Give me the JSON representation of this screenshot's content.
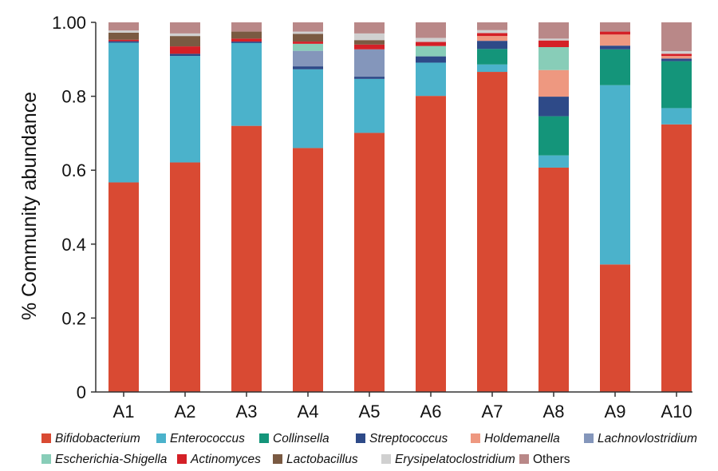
{
  "chart_data": {
    "type": "bar",
    "stacked": true,
    "title": "",
    "xlabel": "",
    "ylabel": "% Community abundance",
    "ylim": [
      0,
      1.0
    ],
    "yticks": [
      "0",
      "0.2",
      "0.4",
      "0.6",
      "0.8",
      "1.00"
    ],
    "grid": false,
    "legend_position": "bottom",
    "categories": [
      "A1",
      "A2",
      "A3",
      "A4",
      "A5",
      "A6",
      "A7",
      "A8",
      "A9",
      "A10"
    ],
    "series": [
      {
        "name": "Bifidobacterium",
        "italic": true,
        "color": "#d94a33",
        "values": [
          0.567,
          0.621,
          0.72,
          0.66,
          0.701,
          0.801,
          0.866,
          0.607,
          0.345,
          0.724
        ]
      },
      {
        "name": "Enterococcus",
        "italic": true,
        "color": "#4bb2cb",
        "values": [
          0.378,
          0.288,
          0.224,
          0.213,
          0.146,
          0.09,
          0.02,
          0.033,
          0.485,
          0.044
        ]
      },
      {
        "name": "Collinsella",
        "italic": true,
        "color": "#14957a",
        "values": [
          0,
          0,
          0,
          0,
          0,
          0,
          0.042,
          0.106,
          0.097,
          0.127
        ]
      },
      {
        "name": "Streptococcus",
        "italic": true,
        "color": "#2e4a88",
        "values": [
          0.004,
          0.006,
          0.004,
          0.008,
          0.006,
          0.017,
          0.022,
          0.053,
          0.01,
          0.007
        ]
      },
      {
        "name": "Holdemanella",
        "italic": true,
        "color": "#ee9880",
        "values": [
          0,
          0,
          0,
          0,
          0,
          0,
          0.013,
          0.072,
          0.03,
          0.007
        ]
      },
      {
        "name": "Lachnovlostridium",
        "italic": true,
        "color": "#8496bb",
        "values": [
          0,
          0,
          0,
          0.042,
          0.074,
          0,
          0,
          0,
          0,
          0
        ]
      },
      {
        "name": "Escherichia-Shigella",
        "italic": true,
        "color": "#88cdb8",
        "values": [
          0,
          0,
          0,
          0.019,
          0,
          0.028,
          0,
          0.062,
          0,
          0
        ]
      },
      {
        "name": "Actinomyces",
        "italic": true,
        "color": "#d42027",
        "values": [
          0.004,
          0.02,
          0.008,
          0.006,
          0.013,
          0.011,
          0.008,
          0.018,
          0.008,
          0.006
        ]
      },
      {
        "name": "Lactobacillus",
        "italic": true,
        "color": "#7a5a42",
        "values": [
          0.019,
          0.028,
          0.019,
          0.021,
          0.012,
          0,
          0,
          0,
          0,
          0
        ]
      },
      {
        "name": "Erysipelatoclostridium",
        "italic": true,
        "color": "#d0d0d0",
        "values": [
          0.006,
          0.007,
          0,
          0.006,
          0.018,
          0.011,
          0.008,
          0.005,
          0,
          0.007
        ]
      },
      {
        "name": "Others",
        "italic": false,
        "color": "#b98888",
        "values": [
          0.022,
          0.03,
          0.025,
          0.025,
          0.03,
          0.042,
          0.021,
          0.044,
          0.025,
          0.078
        ]
      }
    ]
  }
}
